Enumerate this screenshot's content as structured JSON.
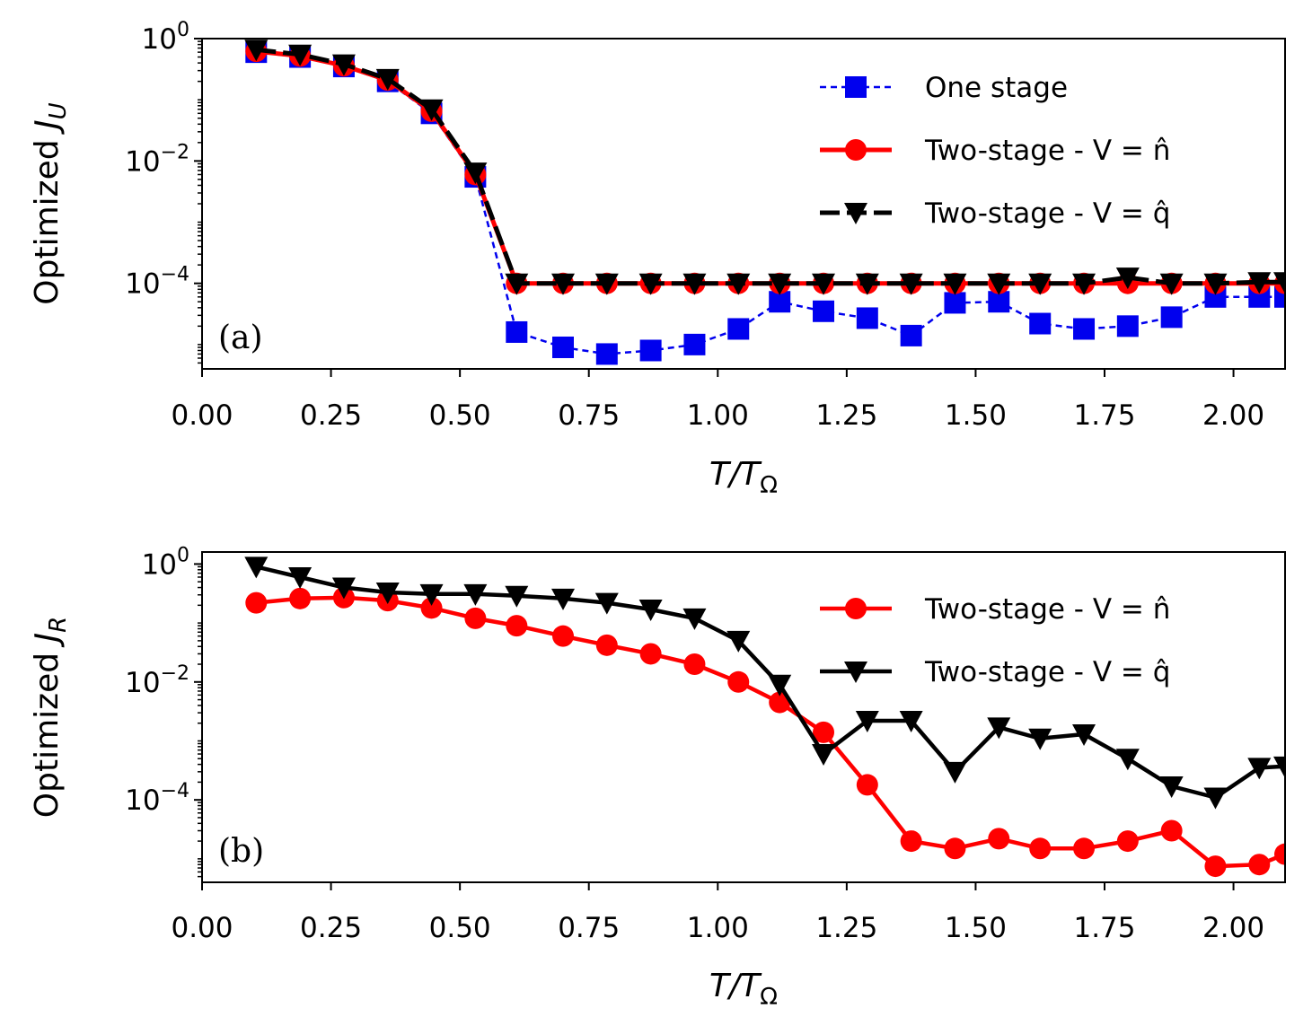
{
  "chart_data": [
    {
      "type": "line",
      "panel_label": "(a)",
      "xlabel": "T/T",
      "xlabel_sub": "Ω",
      "ylabel": "Optimized J",
      "ylabel_sub": "U",
      "xlim": [
        0.0,
        2.1
      ],
      "ylim": [
        4e-06,
        1.0
      ],
      "yscale": "log",
      "xticks": [
        "0.00",
        "0.25",
        "0.50",
        "0.75",
        "1.00",
        "1.25",
        "1.50",
        "1.75",
        "2.00"
      ],
      "xtick_values": [
        0.0,
        0.25,
        0.5,
        0.75,
        1.0,
        1.25,
        1.5,
        1.75,
        2.0
      ],
      "yticks": [
        {
          "value": 1.0,
          "base": "10",
          "exp": "0"
        },
        {
          "value": 0.01,
          "base": "10",
          "exp": "−2"
        },
        {
          "value": 0.0001,
          "base": "10",
          "exp": "−4"
        }
      ],
      "legend_position": "upper-right",
      "series": [
        {
          "name": "One stage",
          "color": "#0000ee",
          "marker": "square",
          "dash": "dashed",
          "x": [
            0.105,
            0.19,
            0.275,
            0.36,
            0.445,
            0.53,
            0.61,
            0.7,
            0.785,
            0.87,
            0.955,
            1.04,
            1.12,
            1.205,
            1.29,
            1.375,
            1.46,
            1.545,
            1.625,
            1.71,
            1.795,
            1.88,
            1.965,
            2.05,
            2.1
          ],
          "y": [
            0.6,
            0.5,
            0.35,
            0.2,
            0.06,
            0.0055,
            1.6e-05,
            9e-06,
            7e-06,
            8e-06,
            1e-05,
            1.8e-05,
            5e-05,
            3.5e-05,
            2.7e-05,
            1.4e-05,
            4.8e-05,
            5e-05,
            2.2e-05,
            1.8e-05,
            2e-05,
            2.8e-05,
            6e-05,
            6e-05,
            6e-05
          ]
        },
        {
          "name": "Two-stage - V = n̂",
          "color": "#ff0000",
          "marker": "circle",
          "dash": "solid",
          "x": [
            0.105,
            0.19,
            0.275,
            0.36,
            0.445,
            0.53,
            0.61,
            0.7,
            0.785,
            0.87,
            0.955,
            1.04,
            1.12,
            1.205,
            1.29,
            1.375,
            1.46,
            1.545,
            1.625,
            1.71,
            1.795,
            1.88,
            1.965,
            2.05,
            2.1
          ],
          "y": [
            0.62,
            0.52,
            0.36,
            0.21,
            0.065,
            0.006,
            0.0001,
            0.0001,
            0.0001,
            0.0001,
            0.0001,
            0.0001,
            0.0001,
            0.0001,
            0.0001,
            0.0001,
            0.0001,
            0.0001,
            0.0001,
            0.0001,
            0.0001,
            0.0001,
            0.0001,
            0.0001,
            0.0001
          ]
        },
        {
          "name": "Two-stage - V = q̂",
          "color": "#000000",
          "marker": "triangle-down",
          "dash": "dashed",
          "x": [
            0.105,
            0.19,
            0.275,
            0.36,
            0.445,
            0.53,
            0.61,
            0.7,
            0.785,
            0.87,
            0.955,
            1.04,
            1.12,
            1.205,
            1.29,
            1.375,
            1.46,
            1.545,
            1.625,
            1.71,
            1.795,
            1.88,
            1.965,
            2.05,
            2.1
          ],
          "y": [
            0.66,
            0.55,
            0.38,
            0.22,
            0.07,
            0.0065,
            0.0001,
            0.0001,
            0.0001,
            0.0001,
            0.0001,
            0.0001,
            0.0001,
            0.0001,
            0.0001,
            0.0001,
            0.0001,
            0.0001,
            0.0001,
            0.0001,
            0.000125,
            0.0001,
            0.0001,
            0.000105,
            0.000105
          ]
        }
      ]
    },
    {
      "type": "line",
      "panel_label": "(b)",
      "xlabel": "T/T",
      "xlabel_sub": "Ω",
      "ylabel": "Optimized J",
      "ylabel_sub": "R",
      "xlim": [
        0.0,
        2.1
      ],
      "ylim": [
        4e-06,
        1.6
      ],
      "yscale": "log",
      "xticks": [
        "0.00",
        "0.25",
        "0.50",
        "0.75",
        "1.00",
        "1.25",
        "1.50",
        "1.75",
        "2.00"
      ],
      "xtick_values": [
        0.0,
        0.25,
        0.5,
        0.75,
        1.0,
        1.25,
        1.5,
        1.75,
        2.0
      ],
      "yticks": [
        {
          "value": 1.0,
          "base": "10",
          "exp": "0"
        },
        {
          "value": 0.01,
          "base": "10",
          "exp": "−2"
        },
        {
          "value": 0.0001,
          "base": "10",
          "exp": "−4"
        }
      ],
      "legend_position": "upper-right",
      "series": [
        {
          "name": "Two-stage - V = n̂",
          "color": "#ff0000",
          "marker": "circle",
          "dash": "solid",
          "x": [
            0.105,
            0.19,
            0.275,
            0.36,
            0.445,
            0.53,
            0.61,
            0.7,
            0.785,
            0.87,
            0.955,
            1.04,
            1.12,
            1.205,
            1.29,
            1.375,
            1.46,
            1.545,
            1.625,
            1.71,
            1.795,
            1.88,
            1.965,
            2.05,
            2.1
          ],
          "y": [
            0.22,
            0.26,
            0.27,
            0.24,
            0.18,
            0.12,
            0.09,
            0.06,
            0.042,
            0.03,
            0.02,
            0.01,
            0.0045,
            0.0014,
            0.00018,
            2e-05,
            1.5e-05,
            2.2e-05,
            1.5e-05,
            1.5e-05,
            2e-05,
            3e-05,
            7.5e-06,
            8e-06,
            1.2e-05
          ]
        },
        {
          "name": "Two-stage - V = q̂",
          "color": "#000000",
          "marker": "triangle-down",
          "dash": "solid",
          "x": [
            0.105,
            0.19,
            0.275,
            0.36,
            0.445,
            0.53,
            0.61,
            0.7,
            0.785,
            0.87,
            0.955,
            1.04,
            1.12,
            1.205,
            1.29,
            1.375,
            1.46,
            1.545,
            1.625,
            1.71,
            1.795,
            1.88,
            1.965,
            2.05,
            2.1
          ],
          "y": [
            0.9,
            0.6,
            0.4,
            0.33,
            0.31,
            0.31,
            0.29,
            0.26,
            0.22,
            0.17,
            0.12,
            0.05,
            0.009,
            0.0006,
            0.0022,
            0.0022,
            0.0003,
            0.0017,
            0.0011,
            0.0013,
            0.0005,
            0.00017,
            0.00011,
            0.00035,
            0.00037
          ]
        }
      ]
    }
  ]
}
